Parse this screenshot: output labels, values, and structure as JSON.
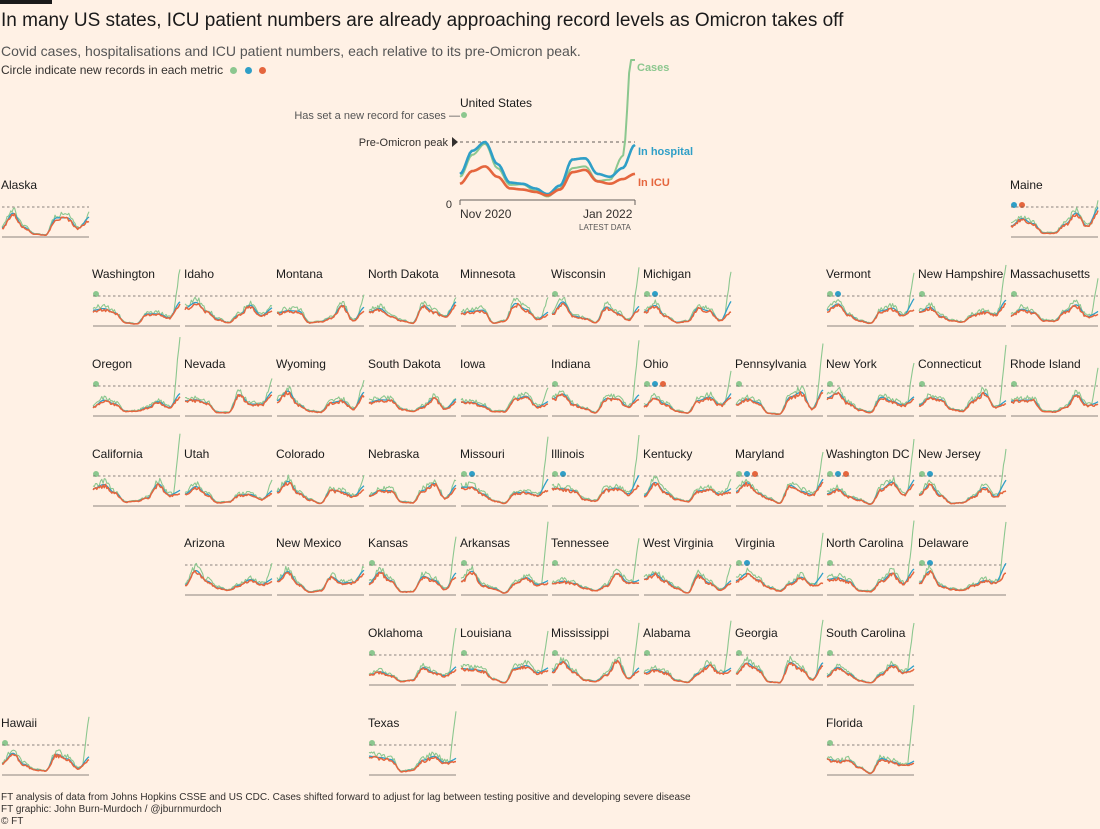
{
  "header": {
    "title": "In many US states, ICU patient numbers are already approaching record levels as Omicron takes off",
    "subtitle": "Covid cases, hospitalisations and ICU patient numbers, each relative to its pre-Omicron peak.",
    "legend_note": "Circle indicate new records in each metric"
  },
  "colors": {
    "cases": "#8cc78f",
    "hospital": "#2f9fc7",
    "icu": "#e5663e",
    "dashed": "#66605c",
    "axis": "#66605c",
    "background": "#fff1e5"
  },
  "us": {
    "name": "United States",
    "record_note": "Has set a new record for cases —",
    "peak_note": "Pre-Omicron peak",
    "zero_label": "0",
    "date_start": "Nov 2020",
    "date_end": "Jan 2022",
    "latest_label": "LATEST DATA",
    "series_labels": {
      "cases": "Cases",
      "hospital": "In hospital",
      "icu": "In ICU"
    }
  },
  "footer": {
    "source": "FT analysis of data from Johns Hopkins CSSE and US CDC. Cases shifted forward to adjust for lag between testing positive and developing severe disease",
    "credit": "FT graphic: John Burn-Murdoch / @jburnmurdoch",
    "copyright": "© FT"
  },
  "chart_data": {
    "type": "line",
    "title": "In many US states, ICU patient numbers are already approaching record levels as Omicron takes off",
    "x_range": [
      "Nov 2020",
      "Jan 2022"
    ],
    "y_reference": "Pre-Omicron peak = 1",
    "metrics": [
      "Cases",
      "In hospital",
      "In ICU"
    ],
    "us_series": {
      "x": [
        "Nov 2020",
        "Dec 2020",
        "Jan 2021",
        "Feb 2021",
        "Mar 2021",
        "Apr 2021",
        "May 2021",
        "Jun 2021",
        "Jul 2021",
        "Aug 2021",
        "Sep 2021",
        "Oct 2021",
        "Nov 2021",
        "Dec 2021",
        "Jan 2022"
      ],
      "cases": [
        0.4,
        0.78,
        0.97,
        0.55,
        0.26,
        0.27,
        0.16,
        0.06,
        0.2,
        0.55,
        0.58,
        0.33,
        0.35,
        0.75,
        3.4
      ],
      "hospital": [
        0.45,
        0.85,
        1.0,
        0.62,
        0.3,
        0.28,
        0.2,
        0.1,
        0.25,
        0.7,
        0.72,
        0.45,
        0.4,
        0.55,
        0.95
      ],
      "icu": [
        0.28,
        0.5,
        0.58,
        0.4,
        0.2,
        0.18,
        0.14,
        0.08,
        0.18,
        0.48,
        0.52,
        0.32,
        0.28,
        0.36,
        0.45
      ]
    },
    "states": [
      {
        "name": "Alaska",
        "records": []
      },
      {
        "name": "Maine",
        "records": [
          "hospital",
          "icu"
        ]
      },
      {
        "name": "Washington",
        "records": [
          "cases"
        ]
      },
      {
        "name": "Idaho",
        "records": []
      },
      {
        "name": "Montana",
        "records": []
      },
      {
        "name": "North Dakota",
        "records": []
      },
      {
        "name": "Minnesota",
        "records": []
      },
      {
        "name": "Wisconsin",
        "records": [
          "cases"
        ]
      },
      {
        "name": "Michigan",
        "records": [
          "cases",
          "hospital"
        ]
      },
      {
        "name": "Vermont",
        "records": [
          "cases",
          "hospital"
        ]
      },
      {
        "name": "New Hampshire",
        "records": [
          "cases"
        ]
      },
      {
        "name": "Massachusetts",
        "records": [
          "cases"
        ]
      },
      {
        "name": "Oregon",
        "records": [
          "cases"
        ]
      },
      {
        "name": "Nevada",
        "records": []
      },
      {
        "name": "Wyoming",
        "records": []
      },
      {
        "name": "South Dakota",
        "records": []
      },
      {
        "name": "Iowa",
        "records": []
      },
      {
        "name": "Indiana",
        "records": [
          "cases"
        ]
      },
      {
        "name": "Ohio",
        "records": [
          "cases",
          "hospital",
          "icu"
        ]
      },
      {
        "name": "Pennsylvania",
        "records": [
          "cases"
        ]
      },
      {
        "name": "New York",
        "records": [
          "cases"
        ]
      },
      {
        "name": "Connecticut",
        "records": [
          "cases"
        ]
      },
      {
        "name": "Rhode Island",
        "records": [
          "cases"
        ]
      },
      {
        "name": "California",
        "records": [
          "cases"
        ]
      },
      {
        "name": "Utah",
        "records": []
      },
      {
        "name": "Colorado",
        "records": []
      },
      {
        "name": "Nebraska",
        "records": []
      },
      {
        "name": "Missouri",
        "records": [
          "cases",
          "hospital"
        ]
      },
      {
        "name": "Illinois",
        "records": [
          "cases",
          "hospital"
        ]
      },
      {
        "name": "Kentucky",
        "records": []
      },
      {
        "name": "Maryland",
        "records": [
          "cases",
          "hospital",
          "icu"
        ]
      },
      {
        "name": "Washington DC",
        "records": [
          "cases",
          "hospital",
          "icu"
        ]
      },
      {
        "name": "New Jersey",
        "records": [
          "cases",
          "hospital"
        ]
      },
      {
        "name": "Arizona",
        "records": []
      },
      {
        "name": "New Mexico",
        "records": []
      },
      {
        "name": "Kansas",
        "records": [
          "cases"
        ]
      },
      {
        "name": "Arkansas",
        "records": [
          "cases"
        ]
      },
      {
        "name": "Tennessee",
        "records": [
          "cases"
        ]
      },
      {
        "name": "West Virginia",
        "records": []
      },
      {
        "name": "Virginia",
        "records": [
          "cases",
          "hospital"
        ]
      },
      {
        "name": "North Carolina",
        "records": [
          "cases"
        ]
      },
      {
        "name": "Delaware",
        "records": [
          "cases",
          "hospital"
        ]
      },
      {
        "name": "Oklahoma",
        "records": [
          "cases"
        ]
      },
      {
        "name": "Louisiana",
        "records": [
          "cases"
        ]
      },
      {
        "name": "Mississippi",
        "records": [
          "cases"
        ]
      },
      {
        "name": "Alabama",
        "records": [
          "cases"
        ]
      },
      {
        "name": "Georgia",
        "records": [
          "cases"
        ]
      },
      {
        "name": "South Carolina",
        "records": [
          "cases"
        ]
      },
      {
        "name": "Hawaii",
        "records": [
          "cases"
        ]
      },
      {
        "name": "Texas",
        "records": [
          "cases"
        ]
      },
      {
        "name": "Florida",
        "records": [
          "cases"
        ]
      }
    ]
  }
}
